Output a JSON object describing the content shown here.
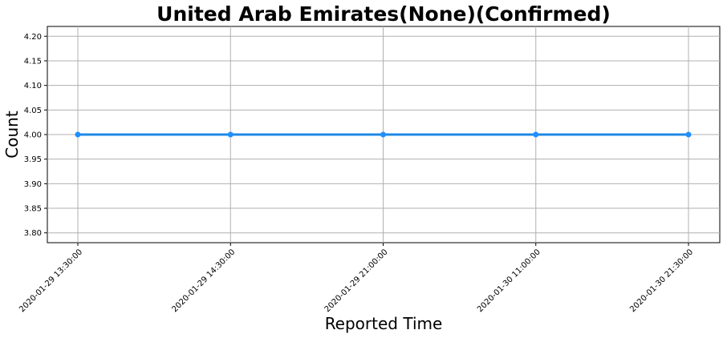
{
  "chart_data": {
    "type": "line",
    "title": "United Arab Emirates(None)(Confirmed)",
    "xlabel": "Reported Time",
    "ylabel": "Count",
    "categories": [
      "2020-01-29 13:30:00",
      "2020-01-29 14:30:00",
      "2020-01-29 21:00:00",
      "2020-01-30 11:00:00",
      "2020-01-30 21:30:00"
    ],
    "series": [
      {
        "values": [
          4,
          4,
          4,
          4,
          4
        ]
      }
    ],
    "ylim": [
      3.78,
      4.22
    ],
    "yticks": [
      "3.80",
      "3.85",
      "3.90",
      "3.95",
      "4.00",
      "4.05",
      "4.10",
      "4.15",
      "4.20"
    ],
    "grid": true,
    "line_color": "#1e88e5",
    "marker_color": "#1e90ff"
  }
}
